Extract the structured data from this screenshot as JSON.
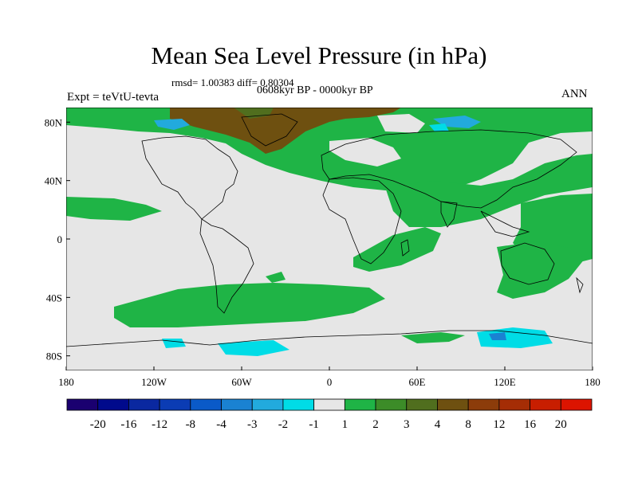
{
  "title": "Mean Sea Level Pressure (in hPa)",
  "stats": "rmsd= 1.00383 diff= 0.80304",
  "period": "0608kyr BP - 0000kyr BP",
  "expt": "Expt = teVtU-tevta",
  "season": "ANN",
  "axes": {
    "lon_labels": [
      "180",
      "120W",
      "60W",
      "0",
      "60E",
      "120E",
      "180"
    ],
    "lat_labels": [
      "80N",
      "40N",
      "0",
      "40S",
      "80S"
    ]
  },
  "colorbar": {
    "labels": [
      "-20",
      "-16",
      "-12",
      "-8",
      "-4",
      "-3",
      "-2",
      "-1",
      "1",
      "2",
      "3",
      "4",
      "8",
      "12",
      "16",
      "20"
    ],
    "colors": [
      "#1a0070",
      "#000a8c",
      "#0a28a0",
      "#0b3cb4",
      "#0a5ac8",
      "#1a82d2",
      "#22aadd",
      "#00dce6",
      "#e6e6e6",
      "#1fb446",
      "#3c8c28",
      "#506e1e",
      "#6e5010",
      "#8c3c0a",
      "#a52d05",
      "#c81e00",
      "#dc1400"
    ]
  },
  "chart_data": {
    "type": "heatmap",
    "title": "Mean Sea Level Pressure (in hPa)",
    "xlabel": "",
    "ylabel": "",
    "xlim": [
      -180,
      180
    ],
    "ylim": [
      -90,
      90
    ],
    "levels": [
      -20,
      -16,
      -12,
      -8,
      -4,
      -3,
      -2,
      -1,
      1,
      2,
      3,
      4,
      8,
      12,
      16,
      20
    ],
    "xticks": [
      -180,
      -120,
      -60,
      0,
      60,
      120,
      180
    ],
    "yticks": [
      80,
      40,
      0,
      -40,
      -80
    ]
  }
}
